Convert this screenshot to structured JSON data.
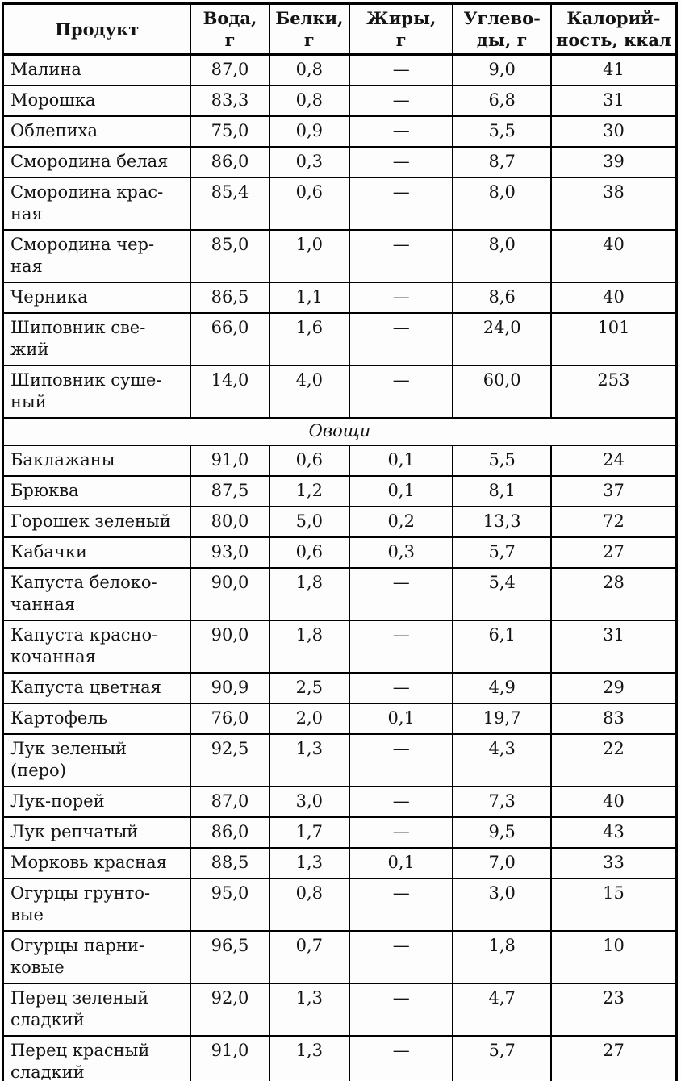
{
  "table": {
    "columns": [
      {
        "label": "Продукт"
      },
      {
        "label": "Вода,\nг"
      },
      {
        "label": "Белки,\nг"
      },
      {
        "label": "Жиры,\nг"
      },
      {
        "label": "Углево-\nды, г"
      },
      {
        "label": "Калорий-\nность, ккал"
      }
    ],
    "sections": [
      {
        "label": null,
        "rows": [
          {
            "name": "Малина",
            "water": "87,0",
            "protein": "0,8",
            "fat": "—",
            "carbs": "9,0",
            "kcal": "41"
          },
          {
            "name": "Морошка",
            "water": "83,3",
            "protein": "0,8",
            "fat": "—",
            "carbs": "6,8",
            "kcal": "31"
          },
          {
            "name": "Облепиха",
            "water": "75,0",
            "protein": "0,9",
            "fat": "—",
            "carbs": "5,5",
            "kcal": "30"
          },
          {
            "name": "Смородина белая",
            "water": "86,0",
            "protein": "0,3",
            "fat": "—",
            "carbs": "8,7",
            "kcal": "39"
          },
          {
            "name": "Смородина крас-\nная",
            "water": "85,4",
            "protein": "0,6",
            "fat": "—",
            "carbs": "8,0",
            "kcal": "38"
          },
          {
            "name": "Смородина чер-\nная",
            "water": "85,0",
            "protein": "1,0",
            "fat": "—",
            "carbs": "8,0",
            "kcal": "40"
          },
          {
            "name": "Черника",
            "water": "86,5",
            "protein": "1,1",
            "fat": "—",
            "carbs": "8,6",
            "kcal": "40"
          },
          {
            "name": "Шиповник све-\nжий",
            "water": "66,0",
            "protein": "1,6",
            "fat": "—",
            "carbs": "24,0",
            "kcal": "101"
          },
          {
            "name": "Шиповник суше-\nный",
            "water": "14,0",
            "protein": "4,0",
            "fat": "—",
            "carbs": "60,0",
            "kcal": "253"
          }
        ]
      },
      {
        "label": "Овощи",
        "rows": [
          {
            "name": "Баклажаны",
            "water": "91,0",
            "protein": "0,6",
            "fat": "0,1",
            "carbs": "5,5",
            "kcal": "24"
          },
          {
            "name": "Брюква",
            "water": "87,5",
            "protein": "1,2",
            "fat": "0,1",
            "carbs": "8,1",
            "kcal": "37"
          },
          {
            "name": "Горошек зеленый",
            "water": "80,0",
            "protein": "5,0",
            "fat": "0,2",
            "carbs": "13,3",
            "kcal": "72"
          },
          {
            "name": "Кабачки",
            "water": "93,0",
            "protein": "0,6",
            "fat": "0,3",
            "carbs": "5,7",
            "kcal": "27"
          },
          {
            "name": "Капуста белоко-\nчанная",
            "water": "90,0",
            "protein": "1,8",
            "fat": "—",
            "carbs": "5,4",
            "kcal": "28"
          },
          {
            "name": "Капуста красно-\nкочанная",
            "water": "90,0",
            "protein": "1,8",
            "fat": "—",
            "carbs": "6,1",
            "kcal": "31"
          },
          {
            "name": "Капуста цветная",
            "water": "90,9",
            "protein": "2,5",
            "fat": "—",
            "carbs": "4,9",
            "kcal": "29"
          },
          {
            "name": "Картофель",
            "water": "76,0",
            "protein": "2,0",
            "fat": "0,1",
            "carbs": "19,7",
            "kcal": "83"
          },
          {
            "name": "Лук зеленый\n(перо)",
            "water": "92,5",
            "protein": "1,3",
            "fat": "—",
            "carbs": "4,3",
            "kcal": "22"
          },
          {
            "name": "Лук-порей",
            "water": "87,0",
            "protein": "3,0",
            "fat": "—",
            "carbs": "7,3",
            "kcal": "40"
          },
          {
            "name": "Лук репчатый",
            "water": "86,0",
            "protein": "1,7",
            "fat": "—",
            "carbs": "9,5",
            "kcal": "43"
          },
          {
            "name": "Морковь красная",
            "water": "88,5",
            "protein": "1,3",
            "fat": "0,1",
            "carbs": "7,0",
            "kcal": "33"
          },
          {
            "name": "Огурцы грунто-\nвые",
            "water": "95,0",
            "protein": "0,8",
            "fat": "—",
            "carbs": "3,0",
            "kcal": "15"
          },
          {
            "name": "Огурцы парни-\nковые",
            "water": "96,5",
            "protein": "0,7",
            "fat": "—",
            "carbs": "1,8",
            "kcal": "10"
          },
          {
            "name": "Перец зеленый\nсладкий",
            "water": "92,0",
            "protein": "1,3",
            "fat": "—",
            "carbs": "4,7",
            "kcal": "23"
          },
          {
            "name": "Перец красный\nсладкий",
            "water": "91,0",
            "protein": "1,3",
            "fat": "—",
            "carbs": "5,7",
            "kcal": "27"
          }
        ]
      }
    ]
  }
}
